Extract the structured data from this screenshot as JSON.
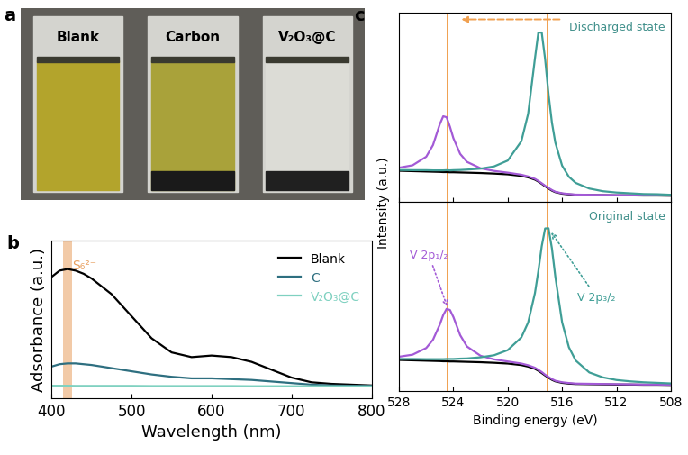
{
  "photo": {
    "panel": "a",
    "labels": [
      "Blank",
      "Carbon",
      "V₂O₃@C"
    ]
  },
  "chart_data": [
    {
      "panel": "b",
      "type": "line",
      "x_label": "Wavelength (nm)",
      "y_label": "Adsorbance (a.u.)",
      "x": [
        400,
        410,
        420,
        430,
        440,
        450,
        475,
        500,
        525,
        550,
        575,
        600,
        625,
        650,
        675,
        700,
        725,
        750,
        775,
        800
      ],
      "series": [
        {
          "name": "Blank",
          "color": "#000000",
          "values": [
            0.77,
            0.81,
            0.82,
            0.81,
            0.79,
            0.76,
            0.66,
            0.52,
            0.38,
            0.29,
            0.26,
            0.27,
            0.26,
            0.23,
            0.18,
            0.13,
            0.1,
            0.09,
            0.085,
            0.08
          ]
        },
        {
          "name": "C",
          "color": "#2e6f80",
          "values": [
            0.2,
            0.215,
            0.22,
            0.22,
            0.215,
            0.21,
            0.19,
            0.17,
            0.15,
            0.135,
            0.125,
            0.125,
            0.12,
            0.115,
            0.105,
            0.095,
            0.085,
            0.08,
            0.078,
            0.077
          ]
        },
        {
          "name": "V₂O₃@C",
          "color": "#7fd1c0",
          "values": [
            0.078,
            0.078,
            0.078,
            0.077,
            0.077,
            0.077,
            0.077,
            0.077,
            0.076,
            0.076,
            0.076,
            0.076,
            0.076,
            0.075,
            0.075,
            0.075,
            0.075,
            0.075,
            0.074,
            0.074
          ]
        }
      ],
      "xlim": [
        400,
        800
      ],
      "xticks": [
        400,
        500,
        600,
        700,
        800
      ],
      "ylim": [
        0,
        1
      ],
      "yticks": [],
      "tick_labels": "x",
      "legend": "upper right",
      "annotations": [
        {
          "text": "S₆²⁻",
          "x": 420,
          "band": [
            414,
            426
          ],
          "color": "#e8a060"
        }
      ]
    },
    {
      "panel": "c",
      "type": "line",
      "title": "Discharged state",
      "x": [
        528,
        527,
        526,
        525.5,
        525,
        524.75,
        524.5,
        524.25,
        524,
        523.5,
        523,
        522,
        521,
        520,
        519,
        518.5,
        518,
        517.75,
        517.5,
        517.25,
        517,
        516.75,
        516.5,
        516,
        515.5,
        515,
        514,
        513,
        512,
        511,
        510,
        509,
        508
      ],
      "series": [
        {
          "color": "#000000",
          "values": [
            0.165,
            0.163,
            0.161,
            0.16,
            0.159,
            0.158,
            0.158,
            0.157,
            0.157,
            0.156,
            0.155,
            0.153,
            0.15,
            0.146,
            0.138,
            0.13,
            0.118,
            0.108,
            0.096,
            0.083,
            0.071,
            0.06,
            0.052,
            0.044,
            0.04,
            0.038,
            0.037,
            0.036,
            0.035,
            0.035,
            0.034,
            0.034,
            0.033
          ]
        },
        {
          "color": "#a35ad6",
          "values": [
            0.181,
            0.194,
            0.239,
            0.301,
            0.411,
            0.453,
            0.448,
            0.397,
            0.337,
            0.254,
            0.212,
            0.178,
            0.164,
            0.155,
            0.144,
            0.135,
            0.122,
            0.111,
            0.099,
            0.086,
            0.074,
            0.063,
            0.054,
            0.046,
            0.042,
            0.039,
            0.038,
            0.037,
            0.036,
            0.036,
            0.035,
            0.035,
            0.034
          ]
        },
        {
          "color": "#3f9e96",
          "values": [
            0.169,
            0.168,
            0.168,
            0.167,
            0.167,
            0.167,
            0.168,
            0.167,
            0.168,
            0.169,
            0.171,
            0.176,
            0.188,
            0.219,
            0.321,
            0.466,
            0.758,
            0.895,
            0.896,
            0.755,
            0.571,
            0.42,
            0.314,
            0.192,
            0.133,
            0.101,
            0.071,
            0.057,
            0.05,
            0.046,
            0.042,
            0.041,
            0.038
          ]
        }
      ],
      "xlim": [
        528,
        508
      ],
      "xticks": [
        528,
        524,
        520,
        516,
        512,
        508
      ],
      "ylim": [
        0,
        1
      ],
      "yticks": [],
      "tick_labels": false,
      "reference_lines": [
        524.4,
        517.1
      ],
      "shift_arrow": [
        516,
        523.6
      ]
    },
    {
      "type": "line",
      "title": "Original state",
      "x_label": "Binding energy (eV)",
      "y_label": "Intensity (a.u.)",
      "x": [
        528,
        527,
        526,
        525.5,
        525,
        524.75,
        524.5,
        524.25,
        524,
        523.5,
        523,
        522,
        521,
        520,
        519,
        518.5,
        518,
        517.75,
        517.5,
        517.25,
        517,
        516.75,
        516.5,
        516,
        515.5,
        515,
        514,
        513,
        512,
        511,
        510,
        509,
        508
      ],
      "series": [
        {
          "color": "#000000",
          "values": [
            0.165,
            0.163,
            0.161,
            0.16,
            0.159,
            0.158,
            0.158,
            0.157,
            0.157,
            0.156,
            0.155,
            0.153,
            0.15,
            0.146,
            0.138,
            0.13,
            0.118,
            0.108,
            0.096,
            0.083,
            0.071,
            0.06,
            0.052,
            0.044,
            0.04,
            0.038,
            0.037,
            0.036,
            0.035,
            0.035,
            0.034,
            0.034,
            0.033
          ]
        },
        {
          "color": "#a35ad6",
          "values": [
            0.182,
            0.193,
            0.228,
            0.272,
            0.352,
            0.402,
            0.435,
            0.429,
            0.392,
            0.296,
            0.236,
            0.187,
            0.168,
            0.157,
            0.146,
            0.137,
            0.124,
            0.113,
            0.101,
            0.087,
            0.075,
            0.064,
            0.055,
            0.047,
            0.043,
            0.04,
            0.039,
            0.038,
            0.037,
            0.036,
            0.035,
            0.035,
            0.034
          ]
        },
        {
          "color": "#3f9e96",
          "values": [
            0.17,
            0.17,
            0.169,
            0.169,
            0.169,
            0.169,
            0.17,
            0.17,
            0.17,
            0.172,
            0.173,
            0.179,
            0.19,
            0.217,
            0.284,
            0.363,
            0.518,
            0.634,
            0.766,
            0.86,
            0.861,
            0.755,
            0.606,
            0.364,
            0.232,
            0.162,
            0.099,
            0.073,
            0.059,
            0.052,
            0.047,
            0.044,
            0.041
          ]
        }
      ],
      "xlim": [
        528,
        508
      ],
      "xticks": [
        528,
        524,
        520,
        516,
        512,
        508
      ],
      "ylim": [
        0,
        1
      ],
      "yticks": [],
      "tick_labels": "x",
      "reference_lines": [
        524.4,
        517.1
      ],
      "annotations": [
        {
          "text": "V 2p₁/₂",
          "x": 524.4,
          "y": 0.435,
          "text_x": 525.8,
          "text_y": 0.72,
          "color": "#a35ad6"
        },
        {
          "text": "V 2p₃/₂",
          "x": 516.9,
          "y": 0.85,
          "text_x": 513.5,
          "text_y": 0.5,
          "color": "#3f9e96"
        }
      ]
    }
  ]
}
